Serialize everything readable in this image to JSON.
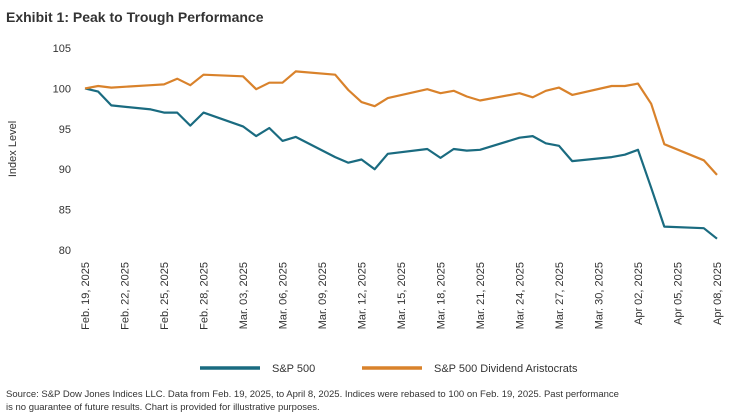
{
  "chart_data": {
    "type": "line",
    "title": "Exhibit 1: Peak to Trough Performance",
    "y_label": "Index Level",
    "x": [
      "2025-02-19",
      "2025-02-20",
      "2025-02-21",
      "2025-02-24",
      "2025-02-25",
      "2025-02-26",
      "2025-02-27",
      "2025-02-28",
      "2025-03-03",
      "2025-03-04",
      "2025-03-05",
      "2025-03-06",
      "2025-03-07",
      "2025-03-10",
      "2025-03-11",
      "2025-03-12",
      "2025-03-13",
      "2025-03-14",
      "2025-03-17",
      "2025-03-18",
      "2025-03-19",
      "2025-03-20",
      "2025-03-21",
      "2025-03-24",
      "2025-03-25",
      "2025-03-26",
      "2025-03-27",
      "2025-03-28",
      "2025-03-31",
      "2025-04-01",
      "2025-04-02",
      "2025-04-03",
      "2025-04-04",
      "2025-04-07",
      "2025-04-08"
    ],
    "series": [
      {
        "name": "S&P 500",
        "color": "#1a6b80",
        "values": [
          100,
          99.6,
          97.9,
          97.4,
          97.0,
          97.0,
          95.4,
          97.0,
          95.3,
          94.1,
          95.1,
          93.5,
          94.0,
          91.5,
          90.8,
          91.2,
          90.0,
          91.9,
          92.5,
          91.4,
          92.5,
          92.3,
          92.4,
          93.9,
          94.1,
          93.2,
          92.9,
          91.0,
          91.5,
          91.8,
          92.4,
          87.7,
          82.9,
          82.7,
          81.4
        ]
      },
      {
        "name": "S&P 500 Dividend Aristocrats",
        "color": "#d9822b",
        "values": [
          100,
          100.3,
          100.1,
          100.4,
          100.5,
          101.2,
          100.4,
          101.7,
          101.5,
          99.9,
          100.7,
          100.7,
          102.1,
          101.7,
          99.8,
          98.3,
          97.8,
          98.8,
          99.9,
          99.4,
          99.7,
          99.0,
          98.5,
          99.4,
          98.9,
          99.7,
          100.1,
          99.2,
          100.3,
          100.3,
          100.6,
          98.1,
          93.1,
          91.1,
          89.3
        ]
      }
    ],
    "xlim": [
      "2025-02-19",
      "2025-04-08"
    ],
    "xticks": [
      {
        "value": "2025-02-19",
        "label": "Feb. 19, 2025"
      },
      {
        "value": "2025-02-22",
        "label": "Feb. 22, 2025"
      },
      {
        "value": "2025-02-25",
        "label": "Feb. 25, 2025"
      },
      {
        "value": "2025-02-28",
        "label": "Feb. 28, 2025"
      },
      {
        "value": "2025-03-03",
        "label": "Mar. 03, 2025"
      },
      {
        "value": "2025-03-06",
        "label": "Mar. 06, 2025"
      },
      {
        "value": "2025-03-09",
        "label": "Mar. 09, 2025"
      },
      {
        "value": "2025-03-12",
        "label": "Mar. 12, 2025"
      },
      {
        "value": "2025-03-15",
        "label": "Mar. 15, 2025"
      },
      {
        "value": "2025-03-18",
        "label": "Mar. 18, 2025"
      },
      {
        "value": "2025-03-21",
        "label": "Mar. 21, 2025"
      },
      {
        "value": "2025-03-24",
        "label": "Mar. 24, 2025"
      },
      {
        "value": "2025-03-27",
        "label": "Mar. 27, 2025"
      },
      {
        "value": "2025-03-30",
        "label": "Mar. 30, 2025"
      },
      {
        "value": "2025-04-02",
        "label": "Apr 02, 2025"
      },
      {
        "value": "2025-04-05",
        "label": "Apr 05, 2025"
      },
      {
        "value": "2025-04-08",
        "label": "Apr 08, 2025"
      }
    ],
    "ylim": [
      80,
      105
    ],
    "yticks": [
      80,
      85,
      90,
      95,
      100,
      105
    ],
    "grid": false,
    "legend": "bottom",
    "note": [
      "Source: S&P Dow Jones Indices LLC. Data from Feb. 19, 2025, to April 8, 2025. Indices were rebased to 100 on Feb. 19, 2025. Past performance",
      "is no guarantee of future results. Chart is provided for illustrative purposes."
    ]
  }
}
